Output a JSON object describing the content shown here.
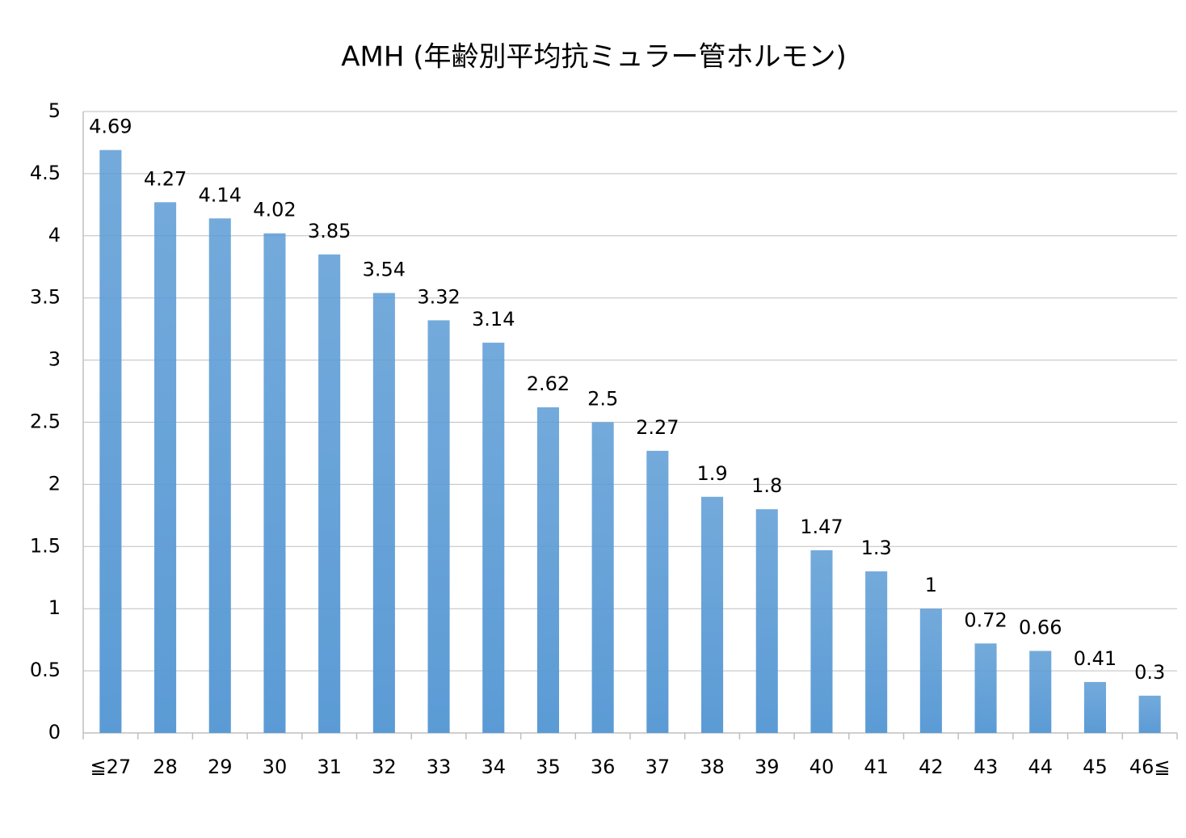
{
  "chart_data": {
    "type": "bar",
    "title": "AMH (年齢別平均抗ミュラー管ホルモン)",
    "categories": [
      "≦27",
      "28",
      "29",
      "30",
      "31",
      "32",
      "33",
      "34",
      "35",
      "36",
      "37",
      "38",
      "39",
      "40",
      "41",
      "42",
      "43",
      "44",
      "45",
      "46≦"
    ],
    "values": [
      4.69,
      4.27,
      4.14,
      4.02,
      3.85,
      3.54,
      3.32,
      3.14,
      2.62,
      2.5,
      2.27,
      1.9,
      1.8,
      1.47,
      1.3,
      1,
      0.72,
      0.66,
      0.41,
      0.3
    ],
    "color": "#5b9bd5",
    "ylim": [
      0,
      5
    ],
    "yticks": [
      0,
      0.5,
      1,
      1.5,
      2,
      2.5,
      3,
      3.5,
      4,
      4.5,
      5
    ],
    "grid": true
  }
}
